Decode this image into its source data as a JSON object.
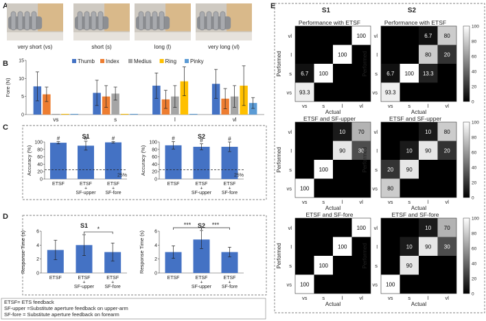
{
  "photos": {
    "panel_label": "A",
    "captions": [
      "very short (vs)",
      "short (s)",
      "long (l)",
      "very long (vl)"
    ]
  },
  "colors": {
    "thumb": "#4472C4",
    "index": "#ED7D31",
    "medius": "#A5A5A5",
    "ring": "#FFC000",
    "pinky": "#5B9BD5",
    "bar_blue": "#4472C4"
  },
  "notes": [
    "ETSF= ETS feedback",
    "SF-upper =Substitute aperture feedback on upper-arm",
    "SF-fore = Substitute aperture feedback on forearm"
  ],
  "chart_data": [
    {
      "id": "B",
      "type": "bar",
      "panel_label": "B",
      "ylabel": "Fore (N)",
      "ylim": [
        0,
        15
      ],
      "yticks": [
        0,
        5,
        10,
        15
      ],
      "categories": [
        "vs",
        "s",
        "l",
        "vl"
      ],
      "series": [
        {
          "name": "Thumb",
          "color_key": "thumb",
          "values": [
            7.8,
            6.0,
            8.0,
            8.5
          ],
          "errors": [
            4.0,
            3.5,
            3.5,
            4.0
          ]
        },
        {
          "name": "Index",
          "color_key": "index",
          "values": [
            5.6,
            5.0,
            4.2,
            4.4
          ],
          "errors": [
            2.0,
            3.0,
            2.5,
            2.8
          ]
        },
        {
          "name": "Medius",
          "color_key": "medius",
          "values": [
            0,
            5.8,
            5.0,
            5.0
          ],
          "errors": [
            0,
            1.8,
            3.0,
            3.0
          ]
        },
        {
          "name": "Ring",
          "color_key": "ring",
          "values": [
            0,
            0,
            9.2,
            8.0
          ],
          "errors": [
            0,
            0,
            4.0,
            5.5
          ]
        },
        {
          "name": "Pinky",
          "color_key": "pinky",
          "values": [
            0,
            0,
            0,
            3.2
          ],
          "errors": [
            0,
            0,
            0,
            1.5
          ]
        }
      ]
    },
    {
      "id": "C1",
      "type": "bar",
      "panel_label": "C",
      "title": "S1",
      "ylabel": "Accuracy (%)",
      "ylim": [
        0,
        100
      ],
      "yticks": [
        0,
        20,
        40,
        60,
        80,
        100
      ],
      "categories": [
        "ETSF",
        "ETSF\n+\nSF-upper",
        "ETSF\n+\nSF-fore"
      ],
      "values": [
        98,
        90,
        99
      ],
      "errors": [
        3,
        12,
        2
      ],
      "markers": [
        "#",
        "#",
        "#"
      ],
      "chance_line": 25,
      "chance_label": "25%"
    },
    {
      "id": "C2",
      "type": "bar",
      "title": "S2",
      "ylabel": "Accuracy (%)",
      "ylim": [
        0,
        100
      ],
      "yticks": [
        0,
        20,
        40,
        60,
        80,
        100
      ],
      "categories": [
        "ETSF",
        "ETSF\n+\nSF-upper",
        "ETSF\n+\nSF-fore"
      ],
      "values": [
        91,
        87,
        87
      ],
      "errors": [
        10,
        8,
        13
      ],
      "markers": [
        "#",
        "#",
        "#"
      ],
      "chance_line": 25,
      "chance_label": "25%"
    },
    {
      "id": "D1",
      "type": "bar",
      "panel_label": "D",
      "title": "S1",
      "ylabel": "Response Time (s)",
      "ylim": [
        0,
        6
      ],
      "yticks": [
        0,
        2,
        4,
        6
      ],
      "categories": [
        "ETSF",
        "ETSF\n+\nSF-upper",
        "ETSF\n+\nSF-fore"
      ],
      "values": [
        3.3,
        4.0,
        3.0
      ],
      "errors": [
        1.4,
        1.5,
        1.3
      ],
      "significance": [
        {
          "from": 1,
          "to": 2,
          "label": "*"
        }
      ]
    },
    {
      "id": "D2",
      "type": "bar",
      "title": "S2",
      "ylabel": "Response Time (s)",
      "ylim": [
        0,
        6
      ],
      "yticks": [
        0,
        2,
        4,
        6
      ],
      "categories": [
        "ETSF",
        "ETSF\n+\nSF-upper",
        "ETSF\n+\nSF-fore"
      ],
      "values": [
        3.0,
        4.8,
        3.0
      ],
      "errors": [
        0.9,
        1.3,
        0.7
      ],
      "significance": [
        {
          "from": 0,
          "to": 1,
          "label": "***"
        },
        {
          "from": 1,
          "to": 2,
          "label": "***"
        }
      ]
    },
    {
      "id": "E",
      "type": "heatmap",
      "panel_label": "E",
      "xlabel": "Actual",
      "ylabel": "Performed",
      "labels": [
        "vs",
        "s",
        "l",
        "vl"
      ],
      "colorbar_ticks": [
        0,
        20,
        40,
        60,
        80,
        100
      ],
      "subjects": [
        "S1",
        "S2"
      ],
      "rows": [
        {
          "title": "Performance with ETSF",
          "matrices": [
            [
              [
                93.3,
                0,
                0,
                0
              ],
              [
                6.7,
                100,
                0,
                0
              ],
              [
                0,
                0,
                100,
                0
              ],
              [
                0,
                0,
                0,
                100
              ]
            ],
            [
              [
                93.3,
                0,
                0,
                0
              ],
              [
                6.7,
                100,
                13.3,
                0
              ],
              [
                0,
                0,
                80,
                20
              ],
              [
                0,
                0,
                6.7,
                80
              ]
            ]
          ]
        },
        {
          "title": "ETSF and SF-upper",
          "matrices": [
            [
              [
                100,
                0,
                0,
                0
              ],
              [
                0,
                100,
                0,
                0
              ],
              [
                0,
                0,
                90,
                30
              ],
              [
                0,
                0,
                10,
                70
              ]
            ],
            [
              [
                80,
                0,
                0,
                0
              ],
              [
                20,
                90,
                0,
                0
              ],
              [
                0,
                10,
                90,
                20
              ],
              [
                0,
                0,
                10,
                80
              ]
            ]
          ]
        },
        {
          "title": "ETSF and SF-fore",
          "matrices": [
            [
              [
                100,
                0,
                0,
                0
              ],
              [
                0,
                100,
                0,
                0
              ],
              [
                0,
                0,
                100,
                0
              ],
              [
                0,
                0,
                0,
                100
              ]
            ],
            [
              [
                100,
                0,
                0,
                0
              ],
              [
                0,
                90,
                0,
                0
              ],
              [
                0,
                10,
                90,
                30
              ],
              [
                0,
                0,
                10,
                70
              ]
            ]
          ]
        }
      ]
    }
  ]
}
